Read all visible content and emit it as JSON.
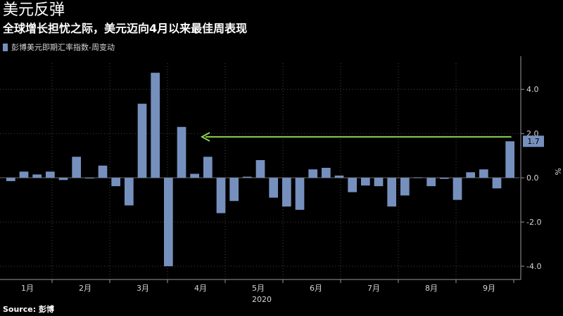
{
  "title": "美元反弹",
  "subtitle": "全球增长担忧之际，美元迈向4月以来最佳周表现",
  "source": "Source: 彭博",
  "colors": {
    "background": "#000000",
    "bar": "#7690be",
    "arrow": "#8fd14f",
    "axis": "#9a9a9a",
    "grid": "#444444",
    "tag_bg": "#7690be"
  },
  "chart_data": {
    "type": "bar",
    "legend": [
      {
        "name": "彭博美元即期汇率指数-周变动"
      }
    ],
    "ylabel": "%",
    "ylim": [
      -4.6,
      5.5
    ],
    "yticks": [
      -4.0,
      -2.0,
      0.0,
      2.0,
      4.0
    ],
    "ytick_labels": [
      "-4.0",
      "-2.0",
      "0.0",
      "2.0",
      "4.0"
    ],
    "xlabel": "2020",
    "month_labels": [
      "1月",
      "2月",
      "3月",
      "4月",
      "5月",
      "6月",
      "7月",
      "8月",
      "9月"
    ],
    "series": [
      {
        "name": "彭博美元即期汇率指数-周变动",
        "values": [
          -0.15,
          0.28,
          0.15,
          0.28,
          -0.1,
          0.95,
          0.0,
          0.55,
          -0.38,
          -1.25,
          3.35,
          4.75,
          -4.0,
          2.3,
          0.18,
          0.95,
          -1.6,
          -1.05,
          0.05,
          0.8,
          -0.9,
          -1.3,
          -1.45,
          0.38,
          0.45,
          0.1,
          -0.65,
          -0.35,
          -0.38,
          -1.3,
          -0.8,
          0.02,
          -0.38,
          -0.05,
          -1.0,
          0.25,
          0.38,
          -0.48,
          1.65
        ]
      }
    ],
    "last_value_label": "1.7",
    "annotation": "arrow from latest bar back to April reference level"
  }
}
